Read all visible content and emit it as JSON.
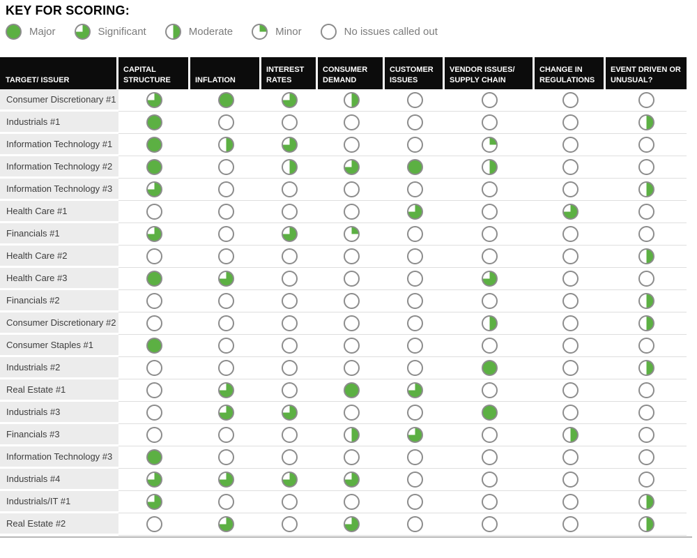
{
  "key": {
    "title": "KEY FOR SCORING:"
  },
  "colors": {
    "green": "#5CB043",
    "circle_border": "#8C8C8C",
    "header_bg": "#0C0C0C",
    "row_label_bg": "#ECECEC"
  },
  "chart_data": {
    "type": "table",
    "title": "KEY FOR SCORING:",
    "legend": [
      {
        "id": "major",
        "label": "Major",
        "fill_pct": 100
      },
      {
        "id": "significant",
        "label": "Significant",
        "fill_pct": 75
      },
      {
        "id": "moderate",
        "label": "Moderate",
        "fill_pct": 50
      },
      {
        "id": "minor",
        "label": "Minor",
        "fill_pct": 25
      },
      {
        "id": "none",
        "label": "No issues called out",
        "fill_pct": 0
      }
    ],
    "columns": [
      "TARGET/ ISSUER",
      "CAPITAL STRUCTURE",
      "INFLATION",
      "INTEREST RATES",
      "CONSUMER DEMAND",
      "CUSTOMER ISSUES",
      "VENDOR ISSUES/ SUPPLY CHAIN",
      "CHANGE IN REGULATIONS",
      "EVENT DRIVEN OR UNUSUAL?"
    ],
    "rows": [
      {
        "issuer": "Consumer Discretionary #1",
        "scores": [
          "significant",
          "major",
          "significant",
          "moderate",
          "none",
          "none",
          "none",
          "none"
        ]
      },
      {
        "issuer": "Industrials #1",
        "scores": [
          "major",
          "none",
          "none",
          "none",
          "none",
          "none",
          "none",
          "moderate"
        ]
      },
      {
        "issuer": "Information Technology #1",
        "scores": [
          "major",
          "moderate",
          "significant",
          "none",
          "none",
          "minor",
          "none",
          "none"
        ]
      },
      {
        "issuer": "Information Technology #2",
        "scores": [
          "major",
          "none",
          "moderate",
          "significant",
          "major",
          "moderate",
          "none",
          "none"
        ]
      },
      {
        "issuer": "Information Technology #3",
        "scores": [
          "significant",
          "none",
          "none",
          "none",
          "none",
          "none",
          "none",
          "moderate"
        ]
      },
      {
        "issuer": "Health Care #1",
        "scores": [
          "none",
          "none",
          "none",
          "none",
          "significant",
          "none",
          "significant",
          "none"
        ]
      },
      {
        "issuer": "Financials #1",
        "scores": [
          "significant",
          "none",
          "significant",
          "minor",
          "none",
          "none",
          "none",
          "none"
        ]
      },
      {
        "issuer": "Health Care #2",
        "scores": [
          "none",
          "none",
          "none",
          "none",
          "none",
          "none",
          "none",
          "moderate"
        ]
      },
      {
        "issuer": "Health Care #3",
        "scores": [
          "major",
          "significant",
          "none",
          "none",
          "none",
          "significant",
          "none",
          "none"
        ]
      },
      {
        "issuer": "Financials #2",
        "scores": [
          "none",
          "none",
          "none",
          "none",
          "none",
          "none",
          "none",
          "moderate"
        ]
      },
      {
        "issuer": "Consumer Discretionary #2",
        "scores": [
          "none",
          "none",
          "none",
          "none",
          "none",
          "moderate",
          "none",
          "moderate"
        ]
      },
      {
        "issuer": "Consumer Staples #1",
        "scores": [
          "major",
          "none",
          "none",
          "none",
          "none",
          "none",
          "none",
          "none"
        ]
      },
      {
        "issuer": "Industrials #2",
        "scores": [
          "none",
          "none",
          "none",
          "none",
          "none",
          "major",
          "none",
          "moderate"
        ]
      },
      {
        "issuer": "Real Estate #1",
        "scores": [
          "none",
          "significant",
          "none",
          "major",
          "significant",
          "none",
          "none",
          "none"
        ]
      },
      {
        "issuer": "Industrials #3",
        "scores": [
          "none",
          "significant",
          "significant",
          "none",
          "none",
          "major",
          "none",
          "none"
        ]
      },
      {
        "issuer": "Financials #3",
        "scores": [
          "none",
          "none",
          "none",
          "moderate",
          "significant",
          "none",
          "moderate",
          "none"
        ]
      },
      {
        "issuer": "Information Technology #3",
        "scores": [
          "major",
          "none",
          "none",
          "none",
          "none",
          "none",
          "none",
          "none"
        ]
      },
      {
        "issuer": "Industrials #4",
        "scores": [
          "significant",
          "significant",
          "significant",
          "significant",
          "none",
          "none",
          "none",
          "none"
        ]
      },
      {
        "issuer": "Industrials/IT #1",
        "scores": [
          "significant",
          "none",
          "none",
          "none",
          "none",
          "none",
          "none",
          "moderate"
        ]
      },
      {
        "issuer": "Real Estate #2",
        "scores": [
          "none",
          "significant",
          "none",
          "significant",
          "none",
          "none",
          "none",
          "moderate"
        ]
      }
    ]
  }
}
